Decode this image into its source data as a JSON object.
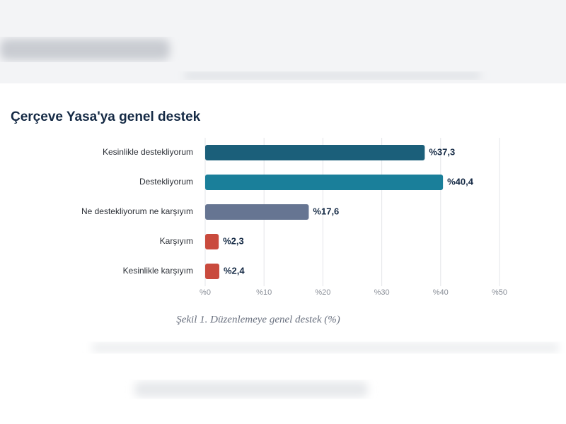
{
  "chart_data": {
    "type": "hbar",
    "title": "Çerçeve Yasa'ya genel destek",
    "categories": [
      "Kesinlikle destekliyorum",
      "Destekliyorum",
      "Ne destekliyorum ne karşıyım",
      "Karşıyım",
      "Kesinlikle karşıyım"
    ],
    "values": [
      37.3,
      40.4,
      17.6,
      2.3,
      2.4
    ],
    "value_labels": [
      "%37,3",
      "%40,4",
      "%17,6",
      "%2,3",
      "%2,4"
    ],
    "colors": [
      "#1b5f7a",
      "#1a7f9a",
      "#667592",
      "#c94a3d",
      "#c94a3d"
    ],
    "xlim": [
      0,
      50
    ],
    "xticks": [
      {
        "value": 0,
        "label": "%0"
      },
      {
        "value": 10,
        "label": "%10"
      },
      {
        "value": 20,
        "label": "%20"
      },
      {
        "value": 30,
        "label": "%30"
      },
      {
        "value": 40,
        "label": "%40"
      },
      {
        "value": 50,
        "label": "%50"
      }
    ],
    "grid": true,
    "caption": "Şekil 1. Düzenlemeye genel destek (%)"
  }
}
